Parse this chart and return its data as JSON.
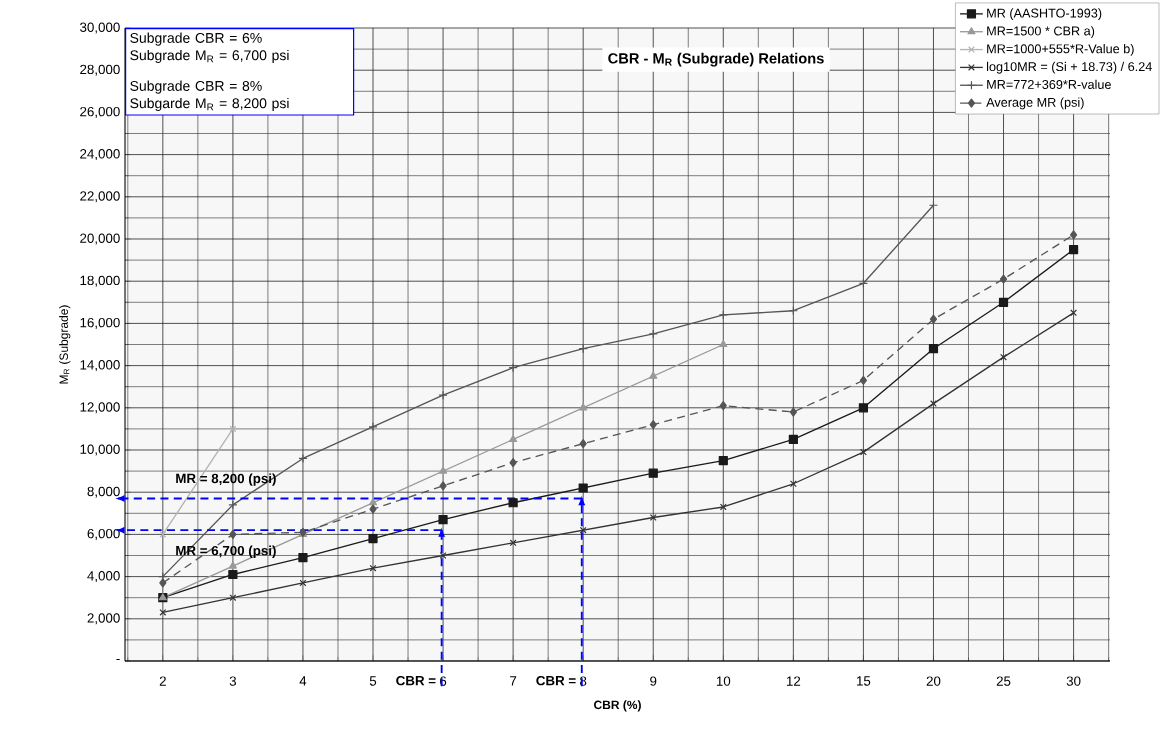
{
  "chart_data": {
    "type": "line",
    "title": "CBR - M$_{R}$ (Subgrade) Relations",
    "xlabel": "CBR (%)",
    "ylabel": "M$_{R}$ (Subgrade)",
    "categories": [
      "2",
      "3",
      "4",
      "5",
      "6",
      "7",
      "8",
      "9",
      "10",
      "12",
      "15",
      "20",
      "25",
      "30"
    ],
    "series": [
      {
        "name": "MR (AASHTO-1993)",
        "color": "#1a1a1a",
        "marker": "square",
        "values": [
          3000,
          4100,
          4900,
          5800,
          6700,
          7500,
          8200,
          8900,
          9500,
          10500,
          12000,
          14800,
          17000,
          19500
        ]
      },
      {
        "name": "MR=1500 * CBR a)",
        "color": "#999999",
        "marker": "triangle",
        "values": [
          3000,
          4500,
          6000,
          7500,
          9000,
          10500,
          12000,
          13500,
          15000,
          null,
          null,
          null,
          null,
          null
        ]
      },
      {
        "name": "MR=1000+555*R-Value b)",
        "color": "#b3b3b3",
        "marker": "cross",
        "values": [
          6000,
          11000,
          null,
          null,
          null,
          null,
          null,
          null,
          null,
          null,
          null,
          null,
          null,
          null
        ]
      },
      {
        "name": "log10MR = (Si + 18.73) / 6.24",
        "color": "#333333",
        "marker": "cross",
        "values": [
          2300,
          3000,
          3700,
          4400,
          5000,
          5600,
          6200,
          6800,
          7300,
          8400,
          9900,
          12200,
          14400,
          16500
        ]
      },
      {
        "name": "MR=772+369*R-value",
        "color": "#555555",
        "marker": "plus",
        "values": [
          4000,
          7400,
          9600,
          11100,
          12600,
          13900,
          14800,
          15500,
          16400,
          16600,
          17900,
          21600,
          null,
          null
        ]
      },
      {
        "name": "Average MR (psi)",
        "color": "#555555",
        "marker": "diamond",
        "line_style": "dashed",
        "values": [
          3700,
          6000,
          6100,
          7200,
          8300,
          9400,
          10300,
          11200,
          12100,
          11800,
          13300,
          16200,
          18100,
          20200
        ]
      }
    ],
    "ylim": [
      0,
      30000
    ],
    "yticks": [
      {
        "value": 0,
        "label": "-"
      },
      {
        "value": 1000,
        "label": null
      },
      {
        "value": 2000,
        "label": "2,000"
      },
      {
        "value": 3000,
        "label": null
      },
      {
        "value": 4000,
        "label": "4,000"
      },
      {
        "value": 5000,
        "label": null
      },
      {
        "value": 6000,
        "label": "6,000"
      },
      {
        "value": 7000,
        "label": null
      },
      {
        "value": 8000,
        "label": "8,000"
      },
      {
        "value": 9000,
        "label": null
      },
      {
        "value": 10000,
        "label": "10,000"
      },
      {
        "value": 11000,
        "label": null
      },
      {
        "value": 12000,
        "label": "12,000"
      },
      {
        "value": 13000,
        "label": null
      },
      {
        "value": 14000,
        "label": "14,000"
      },
      {
        "value": 15000,
        "label": null
      },
      {
        "value": 16000,
        "label": "16,000"
      },
      {
        "value": 17000,
        "label": null
      },
      {
        "value": 18000,
        "label": "18,000"
      },
      {
        "value": 19000,
        "label": null
      },
      {
        "value": 20000,
        "label": "20,000"
      },
      {
        "value": 21000,
        "label": null
      },
      {
        "value": 22000,
        "label": "22,000"
      },
      {
        "value": 23000,
        "label": null
      },
      {
        "value": 24000,
        "label": "24,000"
      },
      {
        "value": 25000,
        "label": null
      },
      {
        "value": 26000,
        "label": "26,000"
      },
      {
        "value": 27000,
        "label": null
      },
      {
        "value": 28000,
        "label": "28,000"
      },
      {
        "value": 29000,
        "label": null
      },
      {
        "value": 30000,
        "label": "30,000"
      }
    ],
    "grid": true,
    "legend": "top right",
    "annotations": [
      "Subgrade CBR = 6%",
      "Subgrade M$_{R}$ = 6,700 psi",
      "Subgrade CBR = 8%",
      "Subgarde M$_{R}$ = 8,200 psi",
      "MR = 6,700 (psi)",
      "MR = 8,200 (psi)"
    ],
    "ref_lines": [
      {
        "axis": "y",
        "value": 6200,
        "color": "#0000ff",
        "line_style": "dashed"
      },
      {
        "axis": "y",
        "value": 7700,
        "color": "#0000ff",
        "line_style": "dashed"
      },
      {
        "axis": "x",
        "value": "6",
        "label": "CBR =",
        "color": "#0000ff",
        "line_style": "dashed"
      },
      {
        "axis": "x",
        "value": "8",
        "label": "CBR =",
        "color": "#0000ff",
        "line_style": "dashed"
      }
    ]
  }
}
